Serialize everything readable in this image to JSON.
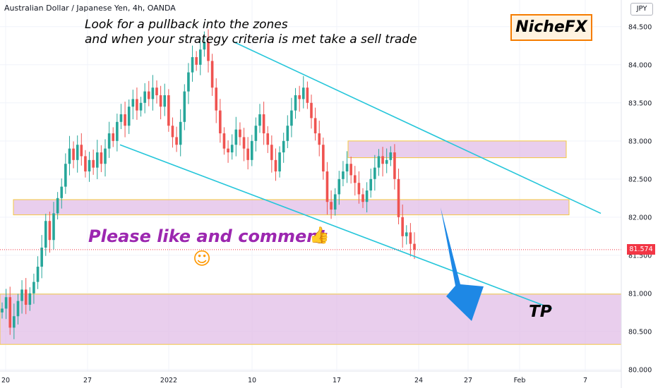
{
  "header": {
    "symbol": "Australian Dollar / Japanese Yen, 4h, OANDA",
    "currency": "JPY"
  },
  "annotations": {
    "note_line1": "Look for a pullback into the zones",
    "note_line2": "and when your strategy criteria is met take a sell trade",
    "brand": "NicheFX",
    "cta": "Please like and comment",
    "thumbs_up": "👍",
    "smiley": "☺",
    "target": "TP"
  },
  "colors": {
    "up": "#26a69a",
    "down": "#ef5350",
    "zone_fill": "#e1bee7",
    "zone_border": "#f5c842",
    "channel": "#26c6da",
    "arrow": "#1e88e5",
    "last_price": "#f23645"
  },
  "chart_data": {
    "type": "candlestick",
    "title": "Australian Dollar / Japanese Yen, 4h, OANDA",
    "ylim": [
      79.98,
      84.85
    ],
    "y_ticks": [
      "80.000",
      "80.500",
      "81.000",
      "81.500",
      "82.000",
      "82.500",
      "83.000",
      "83.500",
      "84.000",
      "84.500"
    ],
    "x_ticks": [
      "20",
      "27",
      "2022",
      "10",
      "17",
      "24",
      "27",
      "Feb",
      "7"
    ],
    "last_price": "81.574",
    "close_series": [
      80.8,
      80.95,
      80.55,
      80.7,
      80.9,
      81.05,
      80.85,
      81.0,
      81.15,
      81.35,
      81.6,
      81.95,
      81.7,
      82.05,
      82.25,
      82.4,
      82.7,
      82.9,
      82.75,
      82.95,
      82.8,
      82.6,
      82.75,
      82.65,
      82.85,
      82.7,
      82.9,
      83.1,
      83.0,
      83.25,
      83.35,
      83.2,
      83.45,
      83.55,
      83.4,
      83.5,
      83.65,
      83.55,
      83.7,
      83.6,
      83.45,
      83.6,
      83.2,
      83.05,
      82.95,
      83.25,
      83.65,
      83.9,
      84.1,
      84.0,
      84.2,
      84.3,
      84.05,
      83.7,
      83.4,
      83.1,
      82.9,
      82.85,
      82.95,
      83.15,
      83.05,
      82.9,
      82.75,
      83.0,
      83.2,
      83.35,
      83.1,
      82.95,
      82.75,
      82.6,
      82.85,
      83.0,
      83.2,
      83.4,
      83.6,
      83.55,
      83.7,
      83.5,
      83.3,
      83.1,
      82.95,
      82.6,
      82.2,
      82.1,
      82.3,
      82.5,
      82.6,
      82.7,
      82.55,
      82.45,
      82.3,
      82.2,
      82.35,
      82.5,
      82.65,
      82.8,
      82.7,
      82.75,
      82.85,
      82.5,
      82.0,
      81.75,
      81.8,
      81.65,
      81.574
    ],
    "channel": {
      "upper": [
        {
          "date": "Jan 5",
          "price": 84.3
        },
        {
          "date": "Feb 6",
          "price": 82.05
        }
      ],
      "lower": [
        {
          "date": "Dec 29",
          "price": 82.95
        },
        {
          "date": "Feb 3",
          "price": 80.8
        }
      ]
    },
    "zones": [
      {
        "from": 82.78,
        "to": 83.0,
        "label": ""
      },
      {
        "from": 82.03,
        "to": 82.23,
        "label": ""
      },
      {
        "from": 80.33,
        "to": 80.99,
        "label": ""
      }
    ]
  }
}
